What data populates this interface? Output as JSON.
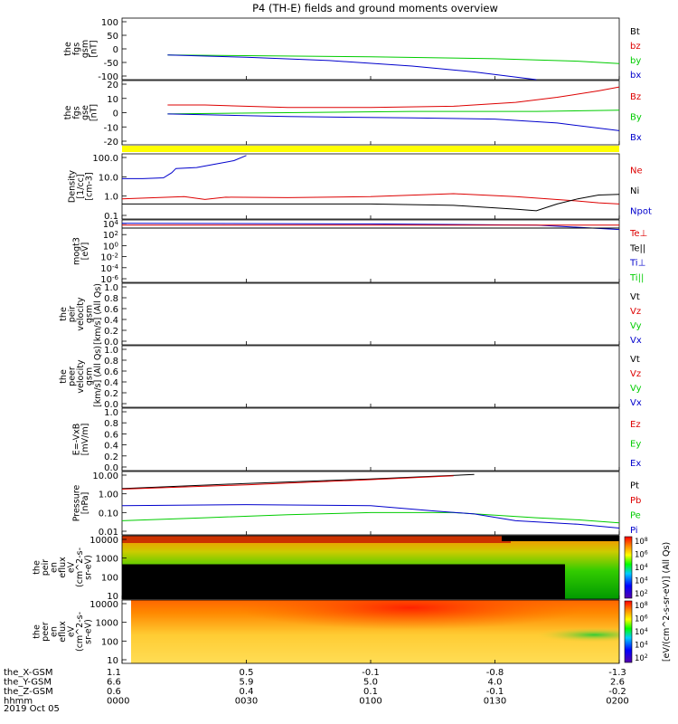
{
  "title": "P4 (TH-E) fields and ground moments overview",
  "date_label": "2019 Oct 05",
  "colors": {
    "black": "#000000",
    "red": "#dd0000",
    "green": "#00cc00",
    "blue": "#0000cc",
    "yellow": "#ffff00"
  },
  "chart_data": [
    {
      "type": "line",
      "id": "fgs_gsm",
      "ylabel": [
        "the",
        "fgs",
        "gsm",
        "[nT]"
      ],
      "yticks": [
        "100",
        "50",
        "0",
        "-50",
        "-100"
      ],
      "ylim": [
        -100,
        100
      ],
      "legend": [
        {
          "text": "Bt",
          "color": "black"
        },
        {
          "text": "bz",
          "color": "red"
        },
        {
          "text": "by",
          "color": "green"
        },
        {
          "text": "bx",
          "color": "blue"
        }
      ],
      "series": [
        {
          "color": "green",
          "points": [
            [
              11,
              -20
            ],
            [
              30,
              -22
            ],
            [
              60,
              -26
            ],
            [
              90,
              -32
            ],
            [
              110,
              -40
            ],
            [
              120,
              -48
            ]
          ]
        },
        {
          "color": "blue",
          "points": [
            [
              11,
              -20
            ],
            [
              30,
              -27
            ],
            [
              50,
              -38
            ],
            [
              70,
              -56
            ],
            [
              85,
              -75
            ],
            [
              100,
              -100
            ]
          ]
        }
      ]
    },
    {
      "type": "line",
      "id": "fgs_gse",
      "ylabel": [
        "the",
        "fgs",
        "gse",
        "[nT]"
      ],
      "yticks": [
        "20",
        "10",
        "0",
        "-10",
        "-20"
      ],
      "ylim": [
        -25,
        25
      ],
      "legend": [
        {
          "text": "Bz",
          "color": "red"
        },
        {
          "text": "By",
          "color": "green"
        },
        {
          "text": "Bx",
          "color": "blue"
        }
      ],
      "series": [
        {
          "color": "red",
          "points": [
            [
              11,
              6
            ],
            [
              20,
              6
            ],
            [
              40,
              4
            ],
            [
              60,
              4
            ],
            [
              80,
              5
            ],
            [
              95,
              8
            ],
            [
              105,
              12
            ],
            [
              115,
              17
            ],
            [
              120,
              20
            ]
          ]
        },
        {
          "color": "green",
          "points": [
            [
              11,
              -1
            ],
            [
              40,
              0
            ],
            [
              70,
              1
            ],
            [
              100,
              1
            ],
            [
              120,
              2
            ]
          ]
        },
        {
          "color": "blue",
          "points": [
            [
              11,
              -1
            ],
            [
              40,
              -3
            ],
            [
              70,
              -4
            ],
            [
              90,
              -5
            ],
            [
              105,
              -8
            ],
            [
              120,
              -14
            ]
          ]
        }
      ]
    },
    {
      "type": "line",
      "id": "density",
      "ylabel": [
        "Density",
        "[1/cc]",
        "[cm-3]"
      ],
      "yticks": [
        "100.0",
        "10.0",
        "1.0",
        "0.1"
      ],
      "ylim": [
        0.04,
        250
      ],
      "log": true,
      "legend": [
        {
          "text": "Ne",
          "color": "red"
        },
        {
          "text": "Ni",
          "color": "black"
        },
        {
          "text": "Npot",
          "color": "blue"
        }
      ],
      "series": [
        {
          "color": "blue",
          "points": [
            [
              0,
              9
            ],
            [
              5,
              9
            ],
            [
              10,
              10
            ],
            [
              12,
              20
            ],
            [
              13,
              35
            ],
            [
              18,
              40
            ],
            [
              22,
              60
            ],
            [
              27,
              100
            ],
            [
              30,
              200
            ]
          ]
        },
        {
          "color": "red",
          "points": [
            [
              0,
              0.6
            ],
            [
              15,
              0.8
            ],
            [
              20,
              0.55
            ],
            [
              25,
              0.75
            ],
            [
              40,
              0.7
            ],
            [
              60,
              0.8
            ],
            [
              80,
              1.2
            ],
            [
              95,
              0.8
            ],
            [
              110,
              0.45
            ],
            [
              115,
              0.35
            ],
            [
              120,
              0.3
            ]
          ]
        },
        {
          "color": "black",
          "points": [
            [
              0,
              0.3
            ],
            [
              30,
              0.3
            ],
            [
              60,
              0.3
            ],
            [
              80,
              0.25
            ],
            [
              95,
              0.15
            ],
            [
              100,
              0.12
            ],
            [
              105,
              0.3
            ],
            [
              110,
              0.6
            ],
            [
              115,
              1.0
            ],
            [
              120,
              1.1
            ]
          ]
        }
      ]
    },
    {
      "type": "line",
      "id": "temperature",
      "ylabel": [
        "mogt3",
        "[eV]"
      ],
      "yticks": [
        "10",
        "10",
        "10",
        "10",
        "10",
        "10"
      ],
      "ytick_exp": [
        "4",
        "2",
        "0",
        "-2",
        "-4",
        "-6"
      ],
      "ylim": [
        1e-08,
        100000.0
      ],
      "log": true,
      "legend": [
        {
          "text": "Te⊥",
          "color": "red"
        },
        {
          "text": "Te||",
          "color": "black"
        },
        {
          "text": "Ti⊥",
          "color": "blue"
        },
        {
          "text": "Ti||",
          "color": "green"
        }
      ],
      "series": [
        {
          "color": "blue",
          "points": [
            [
              0,
              20000
            ],
            [
              60,
              15000
            ],
            [
              100,
              8000
            ],
            [
              110,
              3000
            ],
            [
              120,
              1000
            ]
          ]
        },
        {
          "color": "red",
          "points": [
            [
              0,
              8000
            ],
            [
              60,
              8000
            ],
            [
              120,
              8000
            ]
          ]
        },
        {
          "color": "black",
          "points": [
            [
              0,
              2000
            ],
            [
              60,
              2000
            ],
            [
              120,
              2000
            ]
          ]
        }
      ]
    },
    {
      "type": "line",
      "id": "peir_velocity",
      "ylabel": [
        "the",
        "peir",
        "velocity",
        "gsm",
        "[km/s] (All Qs)"
      ],
      "yticks": [
        "1.0",
        "0.8",
        "0.6",
        "0.4",
        "0.2",
        "0.0"
      ],
      "ylim": [
        0,
        1
      ],
      "legend": [
        {
          "text": "Vt",
          "color": "black"
        },
        {
          "text": "Vz",
          "color": "red"
        },
        {
          "text": "Vy",
          "color": "green"
        },
        {
          "text": "Vx",
          "color": "blue"
        }
      ],
      "series": []
    },
    {
      "type": "line",
      "id": "peer_velocity",
      "ylabel": [
        "the",
        "peer",
        "velocity",
        "gsm",
        "[km/s] (All Qs)"
      ],
      "yticks": [
        "1.0",
        "0.8",
        "0.6",
        "0.4",
        "0.2",
        "0.0"
      ],
      "ylim": [
        0,
        1
      ],
      "legend": [
        {
          "text": "Vt",
          "color": "black"
        },
        {
          "text": "Vz",
          "color": "red"
        },
        {
          "text": "Vy",
          "color": "green"
        },
        {
          "text": "Vx",
          "color": "blue"
        }
      ],
      "series": []
    },
    {
      "type": "line",
      "id": "efield",
      "ylabel": [
        "E=-VxB",
        "[mV/m]"
      ],
      "yticks": [
        "1.0",
        "0.8",
        "0.6",
        "0.4",
        "0.2",
        "0.0"
      ],
      "ylim": [
        0,
        1
      ],
      "legend": [
        {
          "text": "Ez",
          "color": "red"
        },
        {
          "text": "Ey",
          "color": "green"
        },
        {
          "text": "Ex",
          "color": "blue"
        }
      ],
      "series": []
    },
    {
      "type": "line",
      "id": "pressure",
      "ylabel": [
        "Pressure",
        "[nPa]"
      ],
      "yticks": [
        "10.00",
        "1.00",
        "0.10",
        "0.01"
      ],
      "ylim": [
        0.006,
        30
      ],
      "log": true,
      "legend": [
        {
          "text": "Pt",
          "color": "black"
        },
        {
          "text": "Pb",
          "color": "red"
        },
        {
          "text": "Pe",
          "color": "green"
        },
        {
          "text": "Pi",
          "color": "blue"
        }
      ],
      "series": [
        {
          "color": "black",
          "points": [
            [
              0,
              3
            ],
            [
              30,
              6
            ],
            [
              60,
              11
            ],
            [
              85,
              20
            ]
          ]
        },
        {
          "color": "red",
          "points": [
            [
              0,
              2.8
            ],
            [
              30,
              5
            ],
            [
              60,
              10
            ],
            [
              80,
              17
            ]
          ]
        },
        {
          "color": "green",
          "points": [
            [
              0,
              0.04
            ],
            [
              20,
              0.06
            ],
            [
              40,
              0.09
            ],
            [
              60,
              0.12
            ],
            [
              80,
              0.12
            ],
            [
              100,
              0.06
            ],
            [
              110,
              0.045
            ],
            [
              120,
              0.03
            ]
          ]
        },
        {
          "color": "blue",
          "points": [
            [
              0,
              0.3
            ],
            [
              30,
              0.35
            ],
            [
              60,
              0.3
            ],
            [
              75,
              0.15
            ],
            [
              85,
              0.1
            ],
            [
              95,
              0.04
            ],
            [
              110,
              0.025
            ],
            [
              120,
              0.015
            ]
          ]
        }
      ]
    },
    {
      "type": "heatmap",
      "id": "peir_eflux",
      "ylabel": [
        "the",
        "peir",
        "en",
        "eflux",
        "eV",
        "(cm^2-s-",
        "sr-eV)"
      ],
      "yticks": [
        "10000",
        "1000",
        "100",
        "10"
      ],
      "colorbar_ticks": [
        "10",
        "10",
        "10",
        "10",
        "10"
      ],
      "colorbar_exp": [
        "8",
        "6",
        "4",
        "4",
        "2"
      ],
      "colorbar_label": "[eV/(cm^2-s-sr-eV)] (All Qs)"
    },
    {
      "type": "heatmap",
      "id": "peer_eflux",
      "ylabel": [
        "the",
        "peer",
        "en",
        "eflux",
        "eV",
        "(cm^2-s-",
        "sr-eV)"
      ],
      "yticks": [
        "10000",
        "1000",
        "100",
        "10"
      ],
      "colorbar_ticks": [
        "10",
        "10",
        "10",
        "10",
        "10"
      ],
      "colorbar_exp": [
        "8",
        "6",
        "4",
        "4",
        "2"
      ],
      "colorbar_label": "[eV/(cm^2-s-sr-eV)] (All Qs)"
    }
  ],
  "x_axis": {
    "rows": [
      {
        "label": "the_X-GSM",
        "values": [
          "1.1",
          "0.5",
          "-0.1",
          "-0.8",
          "-1.3"
        ]
      },
      {
        "label": "the_Y-GSM",
        "values": [
          "6.6",
          "5.9",
          "5.0",
          "4.0",
          "2.6"
        ]
      },
      {
        "label": "the_Z-GSM",
        "values": [
          "0.6",
          "0.4",
          "0.1",
          "-0.1",
          "-0.2"
        ]
      },
      {
        "label": "hhmm",
        "values": [
          "0000",
          "0030",
          "0100",
          "0130",
          "0200"
        ]
      }
    ],
    "tick_minutes": [
      0,
      30,
      60,
      90,
      120
    ],
    "xlim": [
      0,
      120
    ]
  }
}
